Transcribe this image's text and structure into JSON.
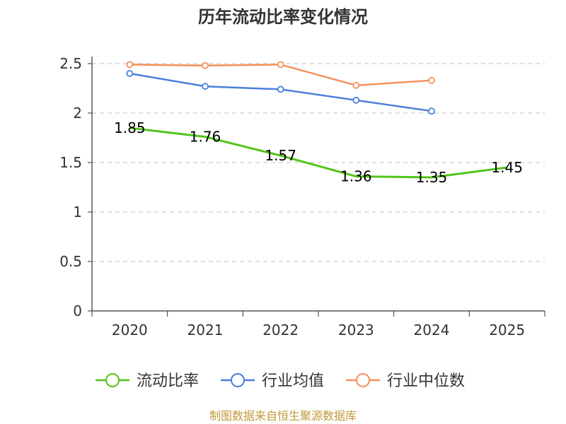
{
  "chart_data": {
    "type": "line",
    "title": "历年流动比率变化情况",
    "xlabel": "",
    "ylabel": "",
    "categories": [
      "2020",
      "2021",
      "2022",
      "2023",
      "2024",
      "2025"
    ],
    "ylim": [
      0,
      2.5
    ],
    "yticks": [
      "0",
      "0.5",
      "1",
      "1.5",
      "2",
      "2.5"
    ],
    "grid": true,
    "series": [
      {
        "name": "流动比率",
        "color": "#52c41a",
        "values": [
          1.85,
          1.76,
          1.57,
          1.36,
          1.35,
          1.45
        ],
        "labels": [
          "1.85",
          "1.76",
          "1.57",
          "1.36",
          "1.35",
          "1.45"
        ],
        "show_labels": true,
        "show_markers": false
      },
      {
        "name": "行业均值",
        "color": "#4a7fdc",
        "values": [
          2.4,
          2.27,
          2.24,
          2.13,
          2.02,
          null
        ],
        "show_labels": false,
        "show_markers": true
      },
      {
        "name": "行业中位数",
        "color": "#f5915a",
        "values": [
          2.49,
          2.48,
          2.49,
          2.28,
          2.33,
          null
        ],
        "show_labels": false,
        "show_markers": true
      }
    ],
    "legend_position": "bottom",
    "source": "制图数据来自恒生聚源数据库"
  }
}
